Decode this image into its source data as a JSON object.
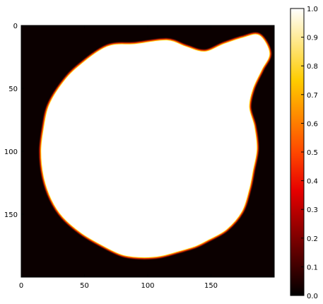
{
  "chart_data": {
    "type": "heatmap",
    "title": "",
    "xlabel": "",
    "ylabel": "",
    "image_extent": {
      "x": [
        0,
        200
      ],
      "y": [
        0,
        200
      ]
    },
    "y_axis_inverted": true,
    "x_ticks": [
      0,
      50,
      100,
      150
    ],
    "y_ticks": [
      0,
      50,
      100,
      150
    ],
    "x_tick_labels": [
      "0",
      "50",
      "100",
      "150"
    ],
    "y_tick_labels": [
      "0",
      "50",
      "100",
      "150"
    ],
    "colormap": "hot",
    "background_value": 0.0,
    "blob_value": 1.0,
    "blob_boundary_points": [
      [
        68,
        17
      ],
      [
        90,
        15
      ],
      [
        115,
        12
      ],
      [
        130,
        17
      ],
      [
        145,
        21
      ],
      [
        160,
        15
      ],
      [
        175,
        10
      ],
      [
        188,
        8
      ],
      [
        196,
        22
      ],
      [
        190,
        35
      ],
      [
        183,
        50
      ],
      [
        180,
        65
      ],
      [
        184,
        80
      ],
      [
        186,
        98
      ],
      [
        183,
        115
      ],
      [
        180,
        130
      ],
      [
        174,
        148
      ],
      [
        162,
        162
      ],
      [
        148,
        170
      ],
      [
        138,
        175
      ],
      [
        125,
        179
      ],
      [
        110,
        183
      ],
      [
        95,
        184
      ],
      [
        80,
        182
      ],
      [
        65,
        175
      ],
      [
        48,
        165
      ],
      [
        33,
        152
      ],
      [
        24,
        138
      ],
      [
        18,
        120
      ],
      [
        16,
        100
      ],
      [
        18,
        82
      ],
      [
        22,
        64
      ],
      [
        32,
        47
      ],
      [
        45,
        33
      ]
    ],
    "colorbar": {
      "range": [
        0.0,
        1.0
      ],
      "ticks": [
        0.0,
        0.1,
        0.2,
        0.3,
        0.4,
        0.5,
        0.6,
        0.7,
        0.8,
        0.9,
        1.0
      ],
      "tick_labels": [
        "0.0",
        "0.1",
        "0.2",
        "0.3",
        "0.4",
        "0.5",
        "0.6",
        "0.7",
        "0.8",
        "0.9",
        "1.0"
      ],
      "colors": [
        "#000000",
        "#e60000",
        "#ffcc00",
        "#ffffff"
      ]
    }
  }
}
